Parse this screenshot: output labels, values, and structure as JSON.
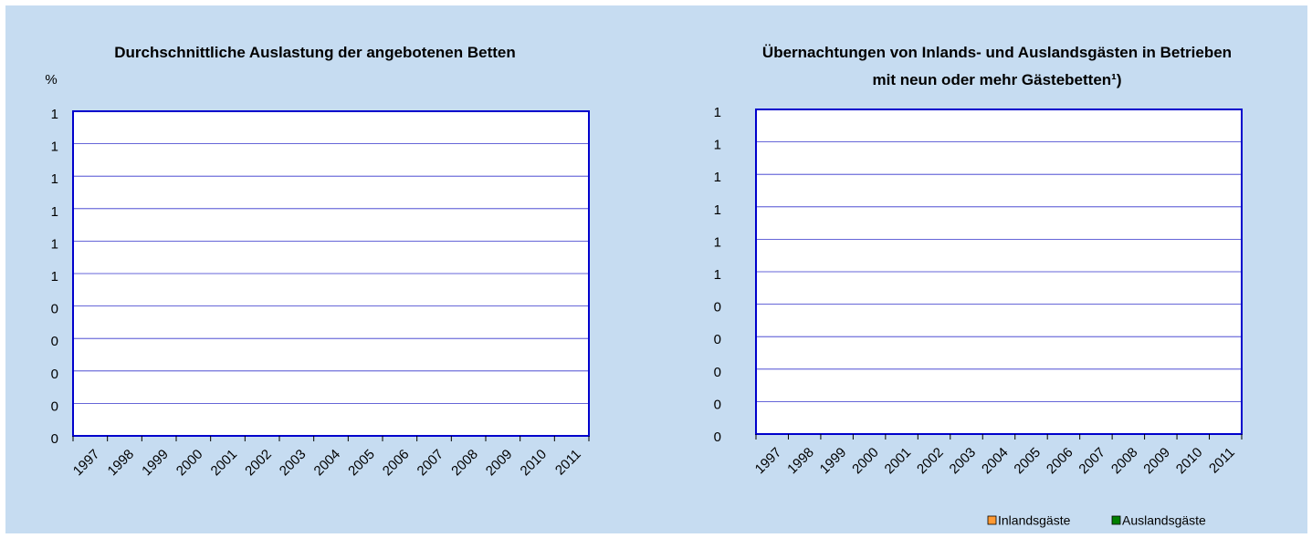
{
  "chart_data": [
    {
      "type": "bar",
      "title": "Durchschnittliche Auslastung der angebotenen Betten",
      "y_label": "%",
      "categories": [
        "1997",
        "1998",
        "1999",
        "2000",
        "2001",
        "2002",
        "2003",
        "2004",
        "2005",
        "2006",
        "2007",
        "2008",
        "2009",
        "2010",
        "2011"
      ],
      "values": [
        null,
        null,
        null,
        null,
        null,
        null,
        null,
        null,
        null,
        null,
        null,
        null,
        null,
        null,
        null
      ],
      "ylim": [
        0,
        1
      ],
      "yticks": [
        {
          "value": 0,
          "label": "0"
        },
        {
          "value": 0.1,
          "label": "0"
        },
        {
          "value": 0.2,
          "label": "0"
        },
        {
          "value": 0.3,
          "label": "0"
        },
        {
          "value": 0.4,
          "label": "0"
        },
        {
          "value": 0.5,
          "label": "1"
        },
        {
          "value": 0.6,
          "label": "1"
        },
        {
          "value": 0.7,
          "label": "1"
        },
        {
          "value": 0.8,
          "label": "1"
        },
        {
          "value": 0.9,
          "label": "1"
        },
        {
          "value": 1,
          "label": "1"
        }
      ],
      "grid": true
    },
    {
      "type": "bar",
      "title": "Übernachtungen von Inlands- und Auslandsgästen in Betrieben mit neun oder mehr Gästebetten¹)",
      "categories": [
        "1997",
        "1998",
        "1999",
        "2000",
        "2001",
        "2002",
        "2003",
        "2004",
        "2005",
        "2006",
        "2007",
        "2008",
        "2009",
        "2010",
        "2011"
      ],
      "series": [
        {
          "name": "Inlandsgäste",
          "color": "#ff9933",
          "values": [
            null,
            null,
            null,
            null,
            null,
            null,
            null,
            null,
            null,
            null,
            null,
            null,
            null,
            null,
            null
          ]
        },
        {
          "name": "Auslandsgäste",
          "color": "#008000",
          "values": [
            null,
            null,
            null,
            null,
            null,
            null,
            null,
            null,
            null,
            null,
            null,
            null,
            null,
            null,
            null
          ]
        }
      ],
      "ylim": [
        0,
        1
      ],
      "yticks": [
        {
          "value": 0,
          "label": "0"
        },
        {
          "value": 0.1,
          "label": "0"
        },
        {
          "value": 0.2,
          "label": "0"
        },
        {
          "value": 0.3,
          "label": "0"
        },
        {
          "value": 0.4,
          "label": "0"
        },
        {
          "value": 0.5,
          "label": "1"
        },
        {
          "value": 0.6,
          "label": "1"
        },
        {
          "value": 0.7,
          "label": "1"
        },
        {
          "value": 0.8,
          "label": "1"
        },
        {
          "value": 0.9,
          "label": "1"
        },
        {
          "value": 1,
          "label": "1"
        }
      ],
      "grid": true,
      "legend": "bottom-right"
    }
  ]
}
